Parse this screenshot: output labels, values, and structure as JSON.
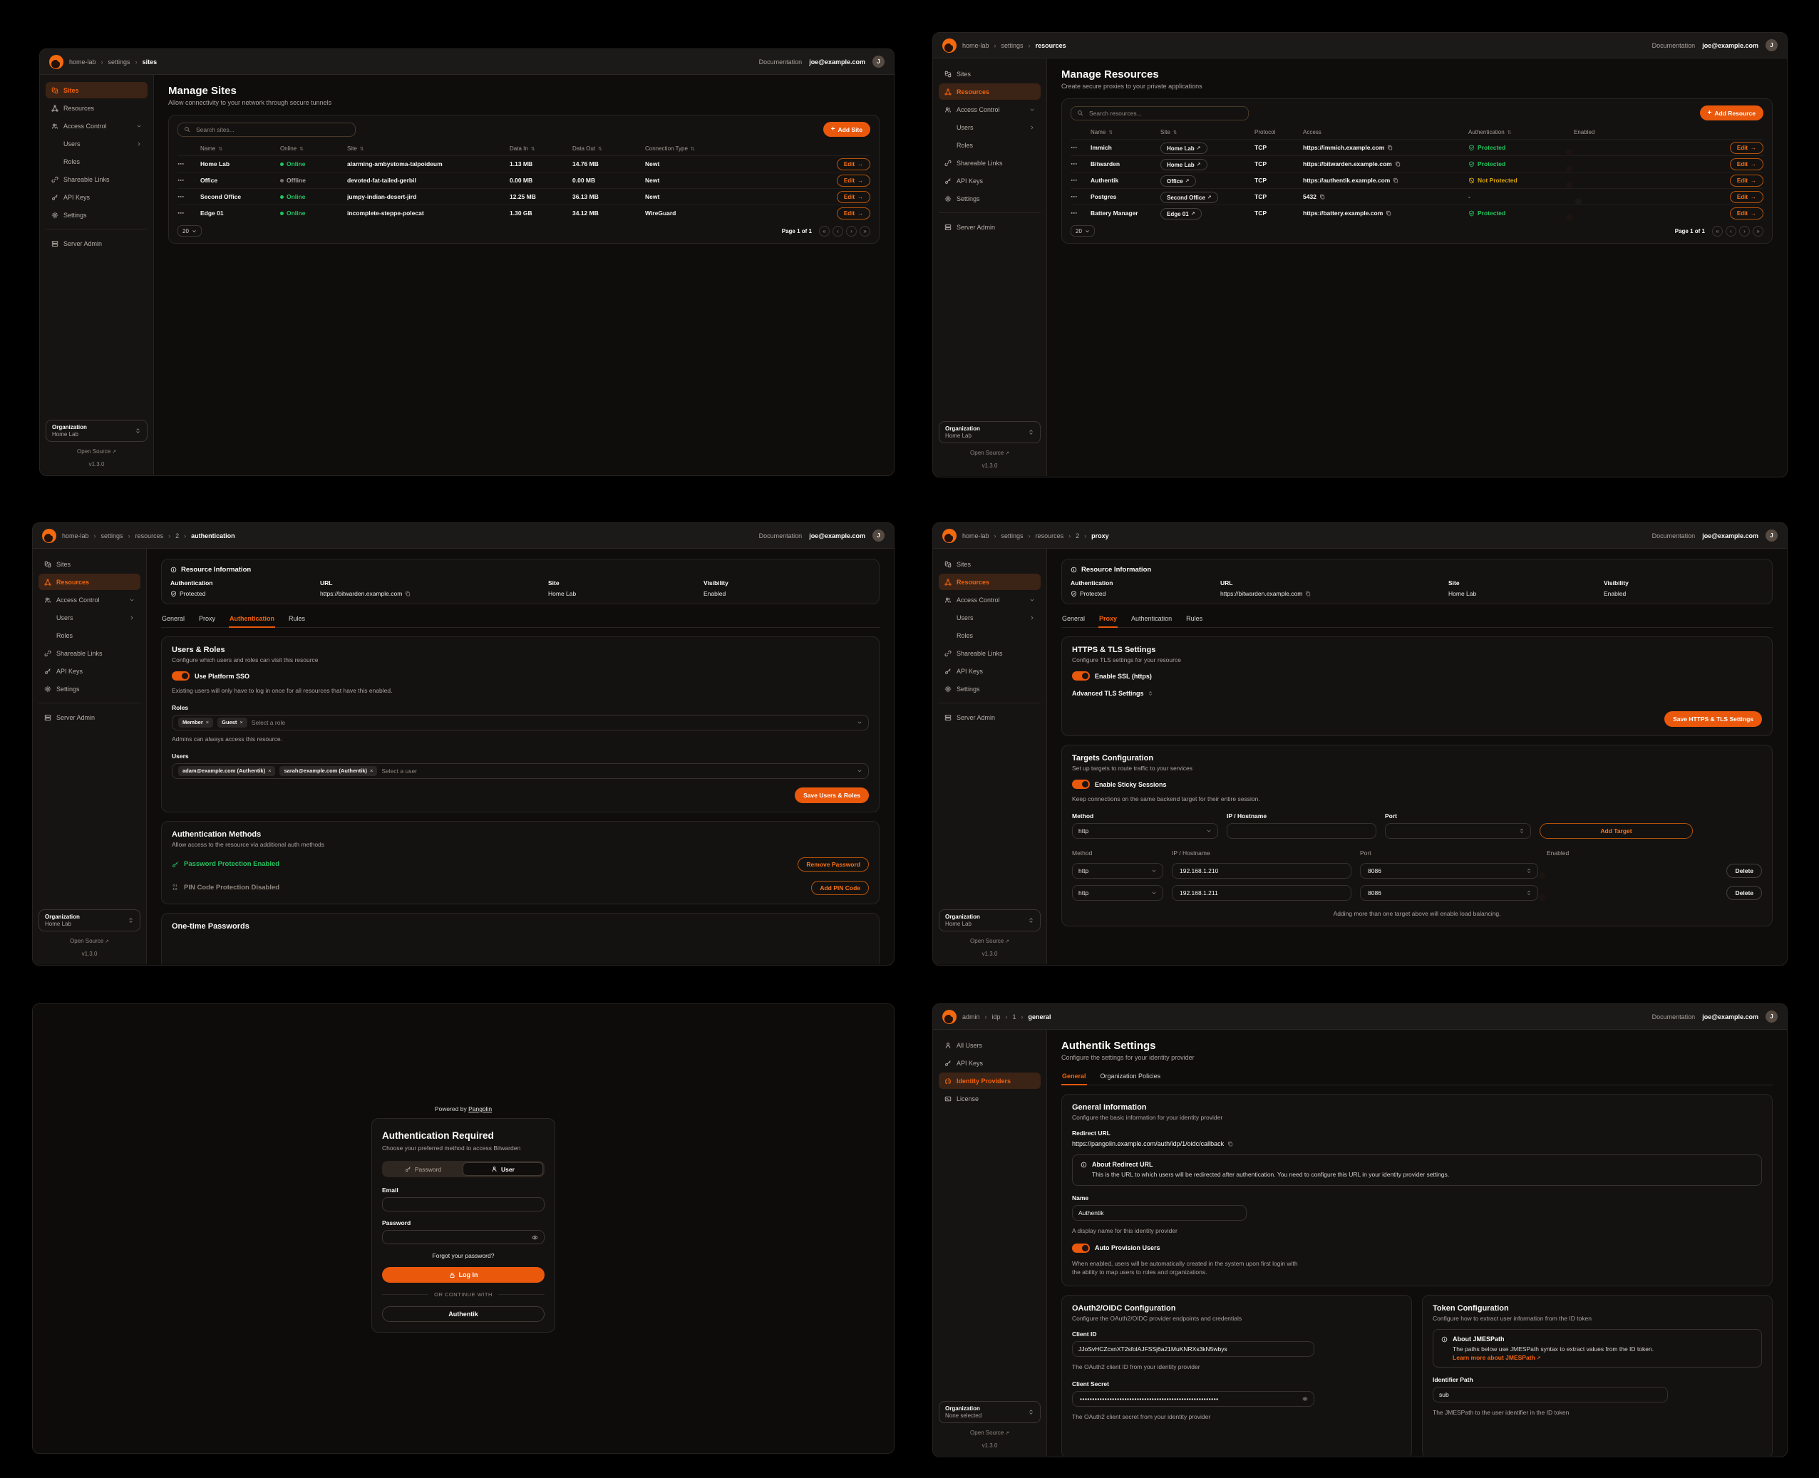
{
  "colors": {
    "accent": "#ea580c",
    "online_green": "#22c55e",
    "warning_yellow": "#d7a50b",
    "panel_bg": "#0e0d0c"
  },
  "header": {
    "documentation": "Documentation",
    "user_email": "joe@example.com",
    "avatar_initial": "J"
  },
  "sidebar": {
    "items": [
      {
        "label": "Sites",
        "icon": "sites"
      },
      {
        "label": "Resources",
        "icon": "resources"
      },
      {
        "label": "Access Control",
        "icon": "users"
      },
      {
        "label": "Users"
      },
      {
        "label": "Roles"
      },
      {
        "label": "Shareable Links",
        "icon": "link"
      },
      {
        "label": "API Keys",
        "icon": "key"
      },
      {
        "label": "Settings",
        "icon": "gear"
      },
      {
        "label": "Server Admin",
        "icon": "server"
      }
    ],
    "org_label": "Organization",
    "org_home": "Home Lab",
    "org_none": "None selected",
    "open_source": "Open Source",
    "version": "v1.3.0"
  },
  "admin_sidebar": {
    "items": [
      {
        "label": "All Users",
        "icon": "person"
      },
      {
        "label": "API Keys",
        "icon": "key"
      },
      {
        "label": "Identity Providers",
        "icon": "fingerprint"
      },
      {
        "label": "License",
        "icon": "license"
      }
    ]
  },
  "sites": {
    "breadcrumb": [
      "home-lab",
      "settings",
      "sites"
    ],
    "title": "Manage Sites",
    "subtitle": "Allow connectivity to your network through secure tunnels",
    "search_placeholder": "Search sites...",
    "add_button": "Add Site",
    "columns": [
      "Name",
      "Online",
      "Site",
      "Data In",
      "Data Out",
      "Connection Type"
    ],
    "rows": [
      {
        "name": "Home Lab",
        "online": "Online",
        "site": "alarming-ambystoma-talpoideum",
        "data_in": "1.13 MB",
        "data_out": "14.76 MB",
        "connection": "Newt"
      },
      {
        "name": "Office",
        "online": "Offline",
        "site": "devoted-fat-tailed-gerbil",
        "data_in": "0.00 MB",
        "data_out": "0.00 MB",
        "connection": "Newt"
      },
      {
        "name": "Second Office",
        "online": "Online",
        "site": "jumpy-indian-desert-jird",
        "data_in": "12.25 MB",
        "data_out": "36.13 MB",
        "connection": "Newt"
      },
      {
        "name": "Edge 01",
        "online": "Online",
        "site": "incomplete-steppe-polecat",
        "data_in": "1.30 GB",
        "data_out": "34.12 MB",
        "connection": "WireGuard"
      }
    ],
    "edit_label": "Edit",
    "page_size": "20",
    "page_info": "Page 1 of 1"
  },
  "resources": {
    "breadcrumb": [
      "home-lab",
      "settings",
      "resources"
    ],
    "title": "Manage Resources",
    "subtitle": "Create secure proxies to your private applications",
    "search_placeholder": "Search resources...",
    "add_button": "Add Resource",
    "columns": [
      "Name",
      "Site",
      "Protocol",
      "Access",
      "Authentication",
      "Enabled"
    ],
    "rows": [
      {
        "name": "Immich",
        "site": "Home Lab",
        "protocol": "TCP",
        "access": "https://immich.example.com",
        "auth": "Protected"
      },
      {
        "name": "Bitwarden",
        "site": "Home Lab",
        "protocol": "TCP",
        "access": "https://bitwarden.example.com",
        "auth": "Protected"
      },
      {
        "name": "Authentik",
        "site": "Office",
        "protocol": "TCP",
        "access": "https://authentik.example.com",
        "auth": "Not Protected"
      },
      {
        "name": "Postgres",
        "site": "Second Office",
        "protocol": "TCP",
        "access": "5432",
        "auth": "-"
      },
      {
        "name": "Battery Manager",
        "site": "Edge 01",
        "protocol": "TCP",
        "access": "https://battery.example.com",
        "auth": "Protected"
      }
    ],
    "edit_label": "Edit",
    "page_size": "20",
    "page_info": "Page 1 of 1"
  },
  "rinfo": {
    "title": "Resource Information",
    "authentication_label": "Authentication",
    "authentication_value": "Protected",
    "url_label": "URL",
    "url_value": "https://bitwarden.example.com",
    "site_label": "Site",
    "site_value": "Home Lab",
    "visibility_label": "Visibility",
    "visibility_value": "Enabled"
  },
  "rtabs": [
    "General",
    "Proxy",
    "Authentication",
    "Rules"
  ],
  "rauth": {
    "breadcrumb": [
      "home-lab",
      "settings",
      "resources",
      "2",
      "authentication"
    ],
    "users_roles": {
      "title": "Users & Roles",
      "subtitle": "Configure which users and roles can visit this resource",
      "sso_label": "Use Platform SSO",
      "sso_help": "Existing users will only have to log in once for all resources that have this enabled.",
      "roles_label": "Roles",
      "role_chips": [
        "Member",
        "Guest"
      ],
      "roles_placeholder": "Select a role",
      "roles_help": "Admins can always access this resource.",
      "users_label": "Users",
      "user_chips": [
        "adam@example.com (Authentik)",
        "sarah@example.com (Authentik)"
      ],
      "users_placeholder": "Select a user",
      "save_button": "Save Users & Roles"
    },
    "methods": {
      "title": "Authentication Methods",
      "subtitle": "Allow access to the resource via additional auth methods",
      "password_status": "Password Protection Enabled",
      "remove_password_button": "Remove Password",
      "pin_status": "PIN Code Protection Disabled",
      "add_pin_button": "Add PIN Code"
    },
    "otp_title": "One-time Passwords"
  },
  "rproxy": {
    "breadcrumb": [
      "home-lab",
      "settings",
      "resources",
      "2",
      "proxy"
    ],
    "https": {
      "title": "HTTPS & TLS Settings",
      "subtitle": "Configure TLS settings for your resource",
      "ssl_label": "Enable SSL (https)",
      "advanced_label": "Advanced TLS Settings",
      "save_button": "Save HTTPS & TLS Settings"
    },
    "targets": {
      "title": "Targets Configuration",
      "subtitle": "Set up targets to route traffic to your services",
      "sticky_label": "Enable Sticky Sessions",
      "sticky_help": "Keep connections on the same backend target for their entire session.",
      "method_label": "Method",
      "method_value": "http",
      "ip_label": "IP / Hostname",
      "port_label": "Port",
      "add_button": "Add Target",
      "columns": [
        "Method",
        "IP / Hostname",
        "Port",
        "Enabled"
      ],
      "rows": [
        {
          "method": "http",
          "ip": "192.168.1.210",
          "port": "8086"
        },
        {
          "method": "http",
          "ip": "192.168.1.211",
          "port": "8086"
        }
      ],
      "delete_button": "Delete",
      "note": "Adding more than one target above will enable load balancing."
    }
  },
  "login": {
    "powered_by": "Powered by",
    "brand": "Pangolin",
    "title": "Authentication Required",
    "subtitle": "Choose your preferred method to access Bitwarden",
    "tab_password": "Password",
    "tab_user": "User",
    "email_label": "Email",
    "password_label": "Password",
    "forgot_link": "Forgot your password?",
    "login_button": "Log In",
    "divider": "OR CONTINUE WITH",
    "idp_button": "Authentik"
  },
  "idp": {
    "breadcrumb": [
      "admin",
      "idp",
      "1",
      "general"
    ],
    "title": "Authentik Settings",
    "subtitle": "Configure the settings for your identity provider",
    "tabs": [
      "General",
      "Organization Policies"
    ],
    "general": {
      "title": "General Information",
      "subtitle": "Configure the basic information for your identity provider",
      "redirect_label": "Redirect URL",
      "redirect_value": "https://pangolin.example.com/auth/idp/1/oidc/callback",
      "about_title": "About Redirect URL",
      "about_text": "This is the URL to which users will be redirected after authentication. You need to configure this URL in your identity provider settings.",
      "name_label": "Name",
      "name_value": "Authentik",
      "name_help": "A display name for this identity provider",
      "auto_label": "Auto Provision Users",
      "auto_help_line1": "When enabled, users will be automatically created in the system upon first login with",
      "auto_help_line2": "the ability to map users to roles and organizations."
    },
    "oauth": {
      "title": "OAuth2/OIDC Configuration",
      "subtitle": "Configure the OAuth2/OIDC provider endpoints and credentials",
      "client_id_label": "Client ID",
      "client_id_value": "JJoSvHCZcxnXT2sfolAJFSSj6a21MuKNRXs3kN5wbys",
      "client_id_help": "The OAuth2 client ID from your identity provider",
      "secret_label": "Client Secret",
      "secret_value": "••••••••••••••••••••••••••••••••••••••••••••••••••••••••",
      "secret_help": "The OAuth2 client secret from your identity provider"
    },
    "token": {
      "title": "Token Configuration",
      "subtitle": "Configure how to extract user information from the ID token",
      "about_title": "About JMESPath",
      "about_text": "The paths below use JMESPath syntax to extract values from the ID token.",
      "about_link": "Learn more about JMESPath",
      "id_label": "Identifier Path",
      "id_value": "sub",
      "id_help": "The JMESPath to the user identifier in the ID token"
    }
  }
}
